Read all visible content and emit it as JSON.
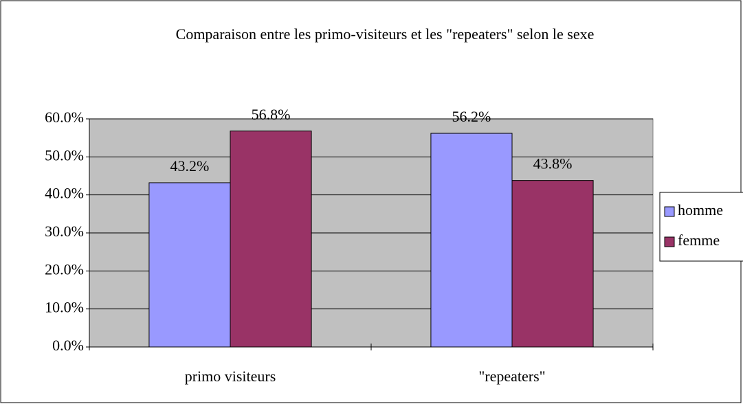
{
  "chart_data": {
    "type": "bar",
    "title": "Comparaison entre les primo-visiteurs et les \"repeaters\" selon le sexe",
    "categories": [
      "primo visiteurs",
      "\"repeaters\""
    ],
    "series": [
      {
        "name": "homme",
        "color": "#9999ff",
        "values": [
          43.2,
          56.2
        ],
        "value_labels": [
          "43.2%",
          "56.2%"
        ]
      },
      {
        "name": "femme",
        "color": "#993366",
        "values": [
          56.8,
          43.8
        ],
        "value_labels": [
          "56.8%",
          "43.8%"
        ]
      }
    ],
    "ylim": [
      0,
      60
    ],
    "yticks": [
      {
        "value": 0,
        "label": "0.0%"
      },
      {
        "value": 10,
        "label": "10.0%"
      },
      {
        "value": 20,
        "label": "20.0%"
      },
      {
        "value": 30,
        "label": "30.0%"
      },
      {
        "value": 40,
        "label": "40.0%"
      },
      {
        "value": 50,
        "label": "50.0%"
      },
      {
        "value": 60,
        "label": "60.0%"
      }
    ],
    "grid": true,
    "legend": "right"
  }
}
